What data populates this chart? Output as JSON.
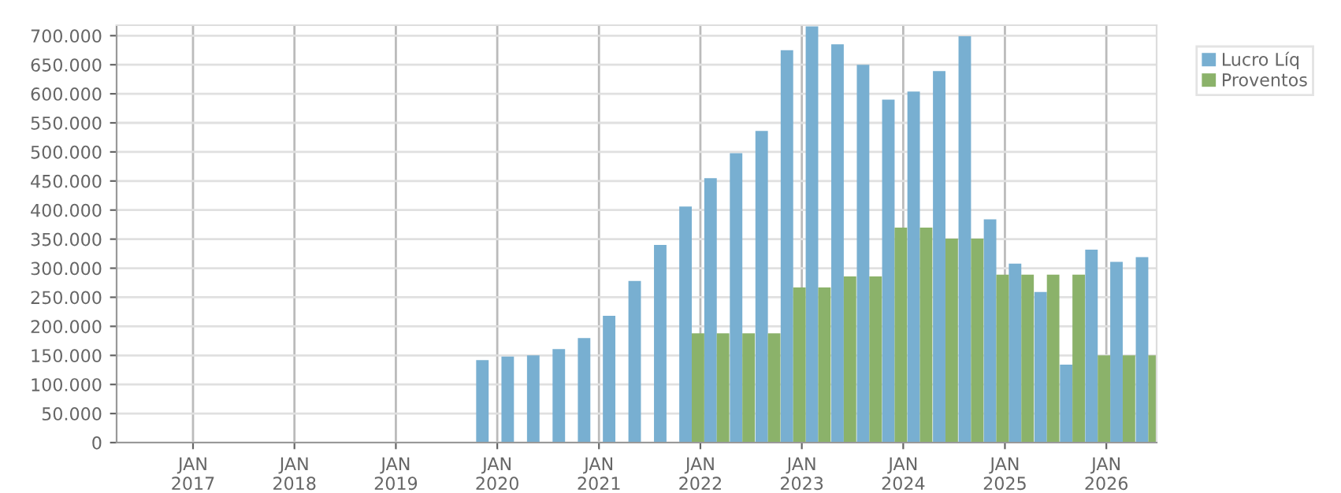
{
  "chart_data": {
    "type": "bar",
    "x": [
      "2019-12",
      "2020-03",
      "2020-06",
      "2020-09",
      "2020-12",
      "2021-03",
      "2021-06",
      "2021-09",
      "2021-12",
      "2022-03",
      "2022-06",
      "2022-09",
      "2022-12",
      "2023-03",
      "2023-06",
      "2023-09",
      "2023-12",
      "2024-03",
      "2024-06",
      "2024-09",
      "2024-12",
      "2025-03",
      "2025-06",
      "2025-09",
      "2025-12",
      "2026-03",
      "2026-06"
    ],
    "series": [
      {
        "name": "Lucro Líq",
        "color": "#78afd1",
        "values": [
          142000,
          148000,
          150000,
          161000,
          180000,
          218000,
          278000,
          340000,
          406000,
          455000,
          498000,
          536000,
          675000,
          716000,
          685000,
          650000,
          590000,
          604000,
          639000,
          699000,
          384000,
          308000,
          259000,
          134000,
          332000,
          311000,
          319000
        ]
      },
      {
        "name": "Proventos",
        "color": "#8bb26a",
        "values": [
          null,
          null,
          null,
          null,
          null,
          null,
          null,
          null,
          188000,
          188000,
          188000,
          188000,
          267000,
          267000,
          286000,
          286000,
          370000,
          370000,
          351000,
          351000,
          289000,
          289000,
          289000,
          289000,
          150000,
          150000,
          150000
        ]
      }
    ],
    "xlim": [
      "2016-04",
      "2026-07"
    ],
    "xticks": [
      {
        "value": "2017-01",
        "label": "JAN\n2017"
      },
      {
        "value": "2018-01",
        "label": "JAN\n2018"
      },
      {
        "value": "2019-01",
        "label": "JAN\n2019"
      },
      {
        "value": "2020-01",
        "label": "JAN\n2020"
      },
      {
        "value": "2021-01",
        "label": "JAN\n2021"
      },
      {
        "value": "2022-01",
        "label": "JAN\n2022"
      },
      {
        "value": "2023-01",
        "label": "JAN\n2023"
      },
      {
        "value": "2024-01",
        "label": "JAN\n2024"
      },
      {
        "value": "2025-01",
        "label": "JAN\n2025"
      },
      {
        "value": "2026-01",
        "label": "JAN\n2026"
      }
    ],
    "ylim": [
      0,
      718000
    ],
    "yticks": [
      {
        "value": 0,
        "label": "0"
      },
      {
        "value": 50000,
        "label": "50.000"
      },
      {
        "value": 100000,
        "label": "100.000"
      },
      {
        "value": 150000,
        "label": "150.000"
      },
      {
        "value": 200000,
        "label": "200.000"
      },
      {
        "value": 250000,
        "label": "250.000"
      },
      {
        "value": 300000,
        "label": "300.000"
      },
      {
        "value": 350000,
        "label": "350.000"
      },
      {
        "value": 400000,
        "label": "400.000"
      },
      {
        "value": 450000,
        "label": "450.000"
      },
      {
        "value": 500000,
        "label": "500.000"
      },
      {
        "value": 550000,
        "label": "550.000"
      },
      {
        "value": 600000,
        "label": "600.000"
      },
      {
        "value": 650000,
        "label": "650.000"
      },
      {
        "value": 700000,
        "label": "700.000"
      }
    ],
    "grid": true,
    "legend": "top right"
  }
}
